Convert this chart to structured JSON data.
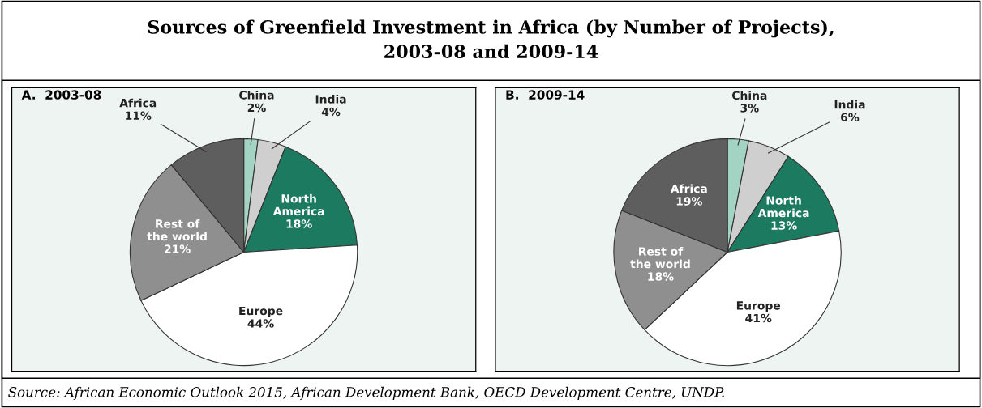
{
  "chart_data": [
    {
      "type": "pie",
      "title": "Sources of Greenfield Investment in Africa (by Number of Projects),\n2003-08 and 2009-14",
      "subtitle": "A.  2003-08",
      "categories": [
        "China",
        "India",
        "North\nAmerica",
        "Europe",
        "Rest of\nthe world",
        "Africa"
      ],
      "values": [
        2,
        4,
        18,
        44,
        21,
        11
      ],
      "value_labels": [
        "2%",
        "4%",
        "18%",
        "44%",
        "21%",
        "11%"
      ],
      "colors": [
        "#a3d3c3",
        "#cfcfcf",
        "#1b7a5f",
        "#ffffff",
        "#8f8f8f",
        "#5e5e5e"
      ],
      "legend": false,
      "annotations": [
        "Source: African Economic Outlook 2015, African Development Bank, OECD Development Centre, UNDP."
      ]
    },
    {
      "type": "pie",
      "subtitle": "B.  2009-14",
      "categories": [
        "China",
        "India",
        "North\nAmerica",
        "Europe",
        "Rest of\nthe world",
        "Africa"
      ],
      "values": [
        3,
        6,
        13,
        41,
        18,
        19
      ],
      "value_labels": [
        "3%",
        "6%",
        "13%",
        "41%",
        "18%",
        "19%"
      ],
      "colors": [
        "#a3d3c3",
        "#cfcfcf",
        "#1b7a5f",
        "#ffffff",
        "#8f8f8f",
        "#5e5e5e"
      ],
      "legend": false
    }
  ]
}
